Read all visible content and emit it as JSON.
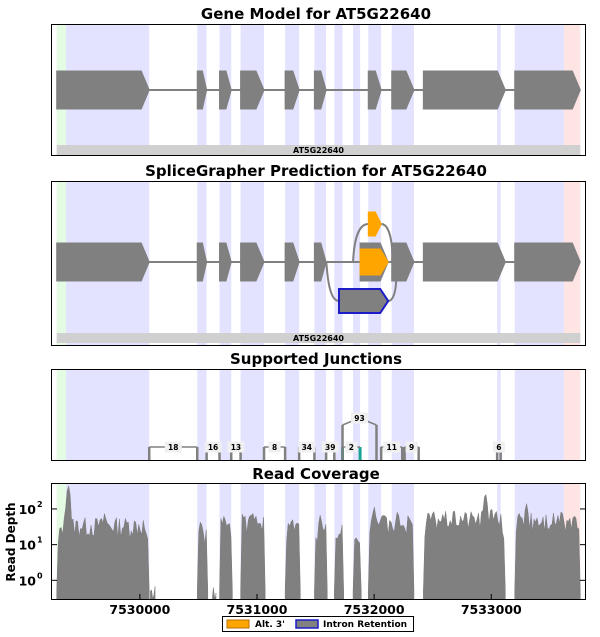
{
  "chart_data": {
    "type": "gene-track",
    "gene_id": "AT5G22640",
    "x_range": [
      7529250,
      7533800
    ],
    "x_ticks": [
      7530000,
      7531000,
      7532000,
      7533000
    ],
    "x_tick_labels": [
      "7530000",
      "7531000",
      "7532000",
      "7533000"
    ],
    "colors": {
      "exon": "#808080",
      "exon_region": "#e3e3ff",
      "utr5": "#e4fce4",
      "utr3": "#ffe4e4",
      "gene_bar": "#d0d0d0",
      "alt3": "#ffa500",
      "intron_retention_edge": "#1c1cc8",
      "junction_highlight": "#1aa394"
    },
    "shaded_regions": [
      {
        "type": "utr5",
        "start": 7529290,
        "end": 7529370
      },
      {
        "type": "exon",
        "start": 7529370,
        "end": 7530080
      },
      {
        "type": "exon",
        "start": 7530490,
        "end": 7530570
      },
      {
        "type": "exon",
        "start": 7530680,
        "end": 7530780
      },
      {
        "type": "exon",
        "start": 7530860,
        "end": 7531060
      },
      {
        "type": "exon",
        "start": 7531240,
        "end": 7531360
      },
      {
        "type": "exon",
        "start": 7531490,
        "end": 7531590
      },
      {
        "type": "exon",
        "start": 7531660,
        "end": 7531730
      },
      {
        "type": "exon",
        "start": 7531820,
        "end": 7531880
      },
      {
        "type": "exon",
        "start": 7531950,
        "end": 7532060
      },
      {
        "type": "exon",
        "start": 7532150,
        "end": 7532340
      },
      {
        "type": "exon",
        "start": 7533050,
        "end": 7533080
      },
      {
        "type": "exon",
        "start": 7533200,
        "end": 7533620
      },
      {
        "type": "utr3",
        "start": 7533620,
        "end": 7533760
      }
    ],
    "panels": [
      {
        "id": "gene-model",
        "title": "Gene Model for AT5G22640",
        "gene_label": "AT5G22640",
        "exons": [
          [
            7529290,
            7530080
          ],
          [
            7530490,
            7530570
          ],
          [
            7530680,
            7530780
          ],
          [
            7530860,
            7531060
          ],
          [
            7531240,
            7531360
          ],
          [
            7531490,
            7531590
          ],
          [
            7531950,
            7532060
          ],
          [
            7532150,
            7532340
          ],
          [
            7532420,
            7533120
          ],
          [
            7533200,
            7533760
          ]
        ]
      },
      {
        "id": "splicegrapher",
        "title": "SpliceGrapher Prediction for AT5G22640",
        "gene_label": "AT5G22640",
        "exons": [
          [
            7529290,
            7530080
          ],
          [
            7530490,
            7530570
          ],
          [
            7530680,
            7530780
          ],
          [
            7530860,
            7531060
          ],
          [
            7531240,
            7531360
          ],
          [
            7531490,
            7531590
          ],
          [
            7531880,
            7532120
          ],
          [
            7532150,
            7532340
          ],
          [
            7532420,
            7533120
          ],
          [
            7533200,
            7533760
          ]
        ],
        "alt3_exons": [
          [
            7531950,
            7532060
          ]
        ],
        "retention_exons": [
          [
            7531700,
            7532120
          ]
        ]
      }
    ],
    "junctions": {
      "title": "Supported Junctions",
      "items": [
        {
          "start": 7530080,
          "end": 7530490,
          "count": "18",
          "level": 0
        },
        {
          "start": 7530570,
          "end": 7530680,
          "count": "16",
          "level": 0
        },
        {
          "start": 7530780,
          "end": 7530860,
          "count": "13",
          "level": 0
        },
        {
          "start": 7531060,
          "end": 7531240,
          "count": "8",
          "level": 0
        },
        {
          "start": 7531360,
          "end": 7531490,
          "count": "34",
          "level": 0
        },
        {
          "start": 7531590,
          "end": 7531660,
          "count": "39",
          "level": 0
        },
        {
          "start": 7531730,
          "end": 7531880,
          "count": "2",
          "level": 0,
          "highlight": true
        },
        {
          "start": 7531730,
          "end": 7532020,
          "count": "93",
          "level": 1
        },
        {
          "start": 7532060,
          "end": 7532240,
          "count": "11",
          "level": 0
        },
        {
          "start": 7532260,
          "end": 7532380,
          "count": "9",
          "level": 0
        },
        {
          "start": 7533050,
          "end": 7533080,
          "count": "6",
          "level": 0
        }
      ]
    },
    "coverage": {
      "title": "Read Coverage",
      "ylabel": "Read Depth",
      "yscale": "log",
      "ylim": [
        0.3,
        500
      ],
      "y_ticks": [
        1,
        10,
        100
      ],
      "y_tick_labels": [
        "10",
        "10",
        "10"
      ],
      "y_tick_exponents": [
        "0",
        "1",
        "2"
      ],
      "segments": [
        {
          "start": 7529290,
          "end": 7530080,
          "base": 40,
          "spikes": [
            [
              7529390,
              500
            ],
            [
              7529700,
              80
            ]
          ]
        },
        {
          "start": 7530090,
          "end": 7530130,
          "base": 0.5,
          "spikes": []
        },
        {
          "start": 7530490,
          "end": 7530580,
          "base": 20,
          "spikes": [
            [
              7530520,
              50
            ]
          ]
        },
        {
          "start": 7530620,
          "end": 7530650,
          "base": 0.5,
          "spikes": []
        },
        {
          "start": 7530680,
          "end": 7530790,
          "base": 40,
          "spikes": [
            [
              7530720,
              70
            ]
          ]
        },
        {
          "start": 7530860,
          "end": 7531070,
          "base": 50,
          "spikes": [
            [
              7530960,
              90
            ]
          ]
        },
        {
          "start": 7531240,
          "end": 7531370,
          "base": 30,
          "spikes": [
            [
              7531300,
              60
            ]
          ]
        },
        {
          "start": 7531490,
          "end": 7531600,
          "base": 30,
          "spikes": [
            [
              7531540,
              70
            ]
          ]
        },
        {
          "start": 7531660,
          "end": 7531740,
          "base": 25,
          "spikes": []
        },
        {
          "start": 7531820,
          "end": 7531890,
          "base": 20,
          "spikes": []
        },
        {
          "start": 7531950,
          "end": 7532340,
          "base": 50,
          "spikes": [
            [
              7532000,
              120
            ],
            [
              7532200,
              90
            ]
          ]
        },
        {
          "start": 7532420,
          "end": 7533120,
          "base": 60,
          "spikes": [
            [
              7532950,
              300
            ],
            [
              7533000,
              120
            ]
          ]
        },
        {
          "start": 7533200,
          "end": 7533760,
          "base": 60,
          "spikes": [
            [
              7533300,
              150
            ],
            [
              7533600,
              100
            ]
          ]
        }
      ]
    },
    "legend": [
      {
        "label": "Alt. 3'",
        "color": "#ffa500",
        "edge": "#b86f00"
      },
      {
        "label": "Intron Retention",
        "color": "#808080",
        "edge": "#1c1cc8"
      }
    ]
  }
}
